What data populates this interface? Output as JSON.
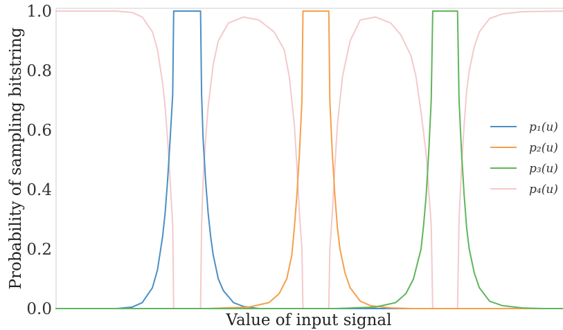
{
  "chart_data": {
    "type": "line",
    "xlabel": "Value of input signal",
    "ylabel": "Probability of sampling bitstring",
    "xlim": [
      0,
      1
    ],
    "ylim": [
      0,
      1.0
    ],
    "yticks": [
      "0.0",
      "0.2",
      "0.4",
      "0.6",
      "0.8",
      "1.0"
    ],
    "xticks": [],
    "grid": false,
    "legend_position": "right",
    "series": [
      {
        "name": "p₁(u)",
        "color": "#4a8fc4",
        "x": [
          0.0,
          0.12,
          0.15,
          0.17,
          0.19,
          0.2,
          0.21,
          0.215,
          0.22,
          0.225,
          0.23,
          0.232,
          0.285,
          0.287,
          0.29,
          0.295,
          0.3,
          0.305,
          0.31,
          0.32,
          0.33,
          0.35,
          0.37,
          0.4,
          0.45,
          0.6,
          1.0
        ],
        "y": [
          0.0,
          0.0,
          0.005,
          0.02,
          0.07,
          0.13,
          0.24,
          0.32,
          0.43,
          0.57,
          0.72,
          1.0,
          1.0,
          0.72,
          0.57,
          0.43,
          0.32,
          0.24,
          0.18,
          0.1,
          0.06,
          0.02,
          0.007,
          0.0,
          0.0,
          0.0,
          0.0
        ]
      },
      {
        "name": "p₂(u)",
        "color": "#f5a04a",
        "x": [
          0.0,
          0.3,
          0.38,
          0.42,
          0.44,
          0.455,
          0.465,
          0.47,
          0.475,
          0.48,
          0.485,
          0.487,
          0.538,
          0.54,
          0.545,
          0.55,
          0.555,
          0.56,
          0.57,
          0.58,
          0.6,
          0.62,
          0.66,
          0.7,
          1.0
        ],
        "y": [
          0.0,
          0.0,
          0.005,
          0.02,
          0.05,
          0.1,
          0.18,
          0.27,
          0.38,
          0.52,
          0.7,
          1.0,
          1.0,
          0.7,
          0.52,
          0.38,
          0.27,
          0.2,
          0.12,
          0.07,
          0.025,
          0.01,
          0.002,
          0.0,
          0.0
        ]
      },
      {
        "name": "p₃(u)",
        "color": "#5fb55a",
        "x": [
          0.0,
          0.55,
          0.63,
          0.67,
          0.69,
          0.705,
          0.72,
          0.725,
          0.73,
          0.735,
          0.74,
          0.743,
          0.792,
          0.795,
          0.8,
          0.805,
          0.81,
          0.815,
          0.825,
          0.835,
          0.855,
          0.88,
          0.92,
          0.96,
          1.0
        ],
        "y": [
          0.0,
          0.0,
          0.005,
          0.02,
          0.05,
          0.1,
          0.2,
          0.28,
          0.38,
          0.52,
          0.7,
          1.0,
          1.0,
          0.7,
          0.52,
          0.38,
          0.27,
          0.2,
          0.12,
          0.07,
          0.025,
          0.01,
          0.002,
          0.0,
          0.0
        ]
      },
      {
        "name": "p₄(u)",
        "color": "#f4c9cc",
        "x": [
          0.0,
          0.12,
          0.15,
          0.17,
          0.19,
          0.2,
          0.21,
          0.215,
          0.22,
          0.225,
          0.23,
          0.232,
          0.285,
          0.287,
          0.29,
          0.295,
          0.3,
          0.31,
          0.32,
          0.34,
          0.37,
          0.4,
          0.43,
          0.45,
          0.46,
          0.47,
          0.475,
          0.48,
          0.485,
          0.487,
          0.538,
          0.54,
          0.545,
          0.55,
          0.555,
          0.565,
          0.58,
          0.6,
          0.63,
          0.66,
          0.68,
          0.7,
          0.71,
          0.72,
          0.73,
          0.735,
          0.74,
          0.743,
          0.792,
          0.795,
          0.8,
          0.805,
          0.81,
          0.815,
          0.825,
          0.835,
          0.855,
          0.88,
          0.92,
          1.0
        ],
        "y": [
          1.0,
          1.0,
          0.995,
          0.98,
          0.93,
          0.87,
          0.76,
          0.68,
          0.57,
          0.43,
          0.28,
          0.0,
          0.0,
          0.28,
          0.43,
          0.57,
          0.68,
          0.82,
          0.9,
          0.96,
          0.98,
          0.97,
          0.93,
          0.87,
          0.78,
          0.62,
          0.48,
          0.32,
          0.2,
          0.0,
          0.0,
          0.2,
          0.32,
          0.48,
          0.62,
          0.78,
          0.9,
          0.97,
          0.98,
          0.96,
          0.92,
          0.85,
          0.78,
          0.66,
          0.52,
          0.4,
          0.28,
          0.0,
          0.0,
          0.3,
          0.48,
          0.62,
          0.73,
          0.8,
          0.88,
          0.93,
          0.975,
          0.99,
          0.998,
          1.0
        ]
      }
    ]
  }
}
